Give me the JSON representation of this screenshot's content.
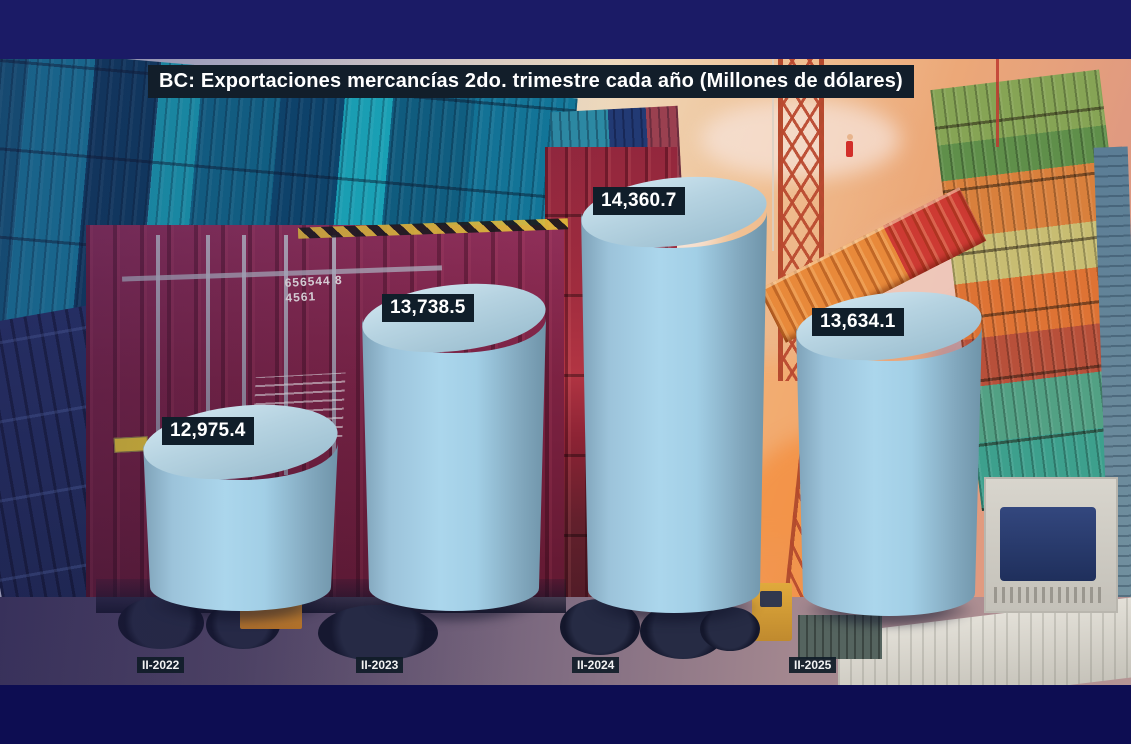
{
  "chart_data": {
    "type": "bar",
    "style": "3d-cylinder",
    "title": "BC: Exportaciones mercancías 2do. trimestre cada año (Millones de dólares)",
    "unit": "Millones de dólares",
    "categories": [
      "II-2022",
      "II-2023",
      "II-2024",
      "II-2025"
    ],
    "values": [
      12975.4,
      13738.5,
      14360.7,
      13634.1
    ],
    "value_labels": [
      "12,975.4",
      "13,738.5",
      "14,360.7",
      "13,634.1"
    ],
    "series": [
      {
        "name": "Exportaciones mercancías 2do. trimestre",
        "values": [
          12975.4,
          13738.5,
          14360.7,
          13634.1
        ]
      }
    ],
    "legend": "none",
    "grid": "off",
    "background": "container-port-photo",
    "bar_color": "#a9d2e8",
    "label_box_color": "#101e2a",
    "label_text_color": "#ffffff"
  },
  "background_photo": {
    "description": "shipping container port at sunset with crane lifting container",
    "container_code_line1": "656544 8",
    "container_code_line2": "4561"
  }
}
